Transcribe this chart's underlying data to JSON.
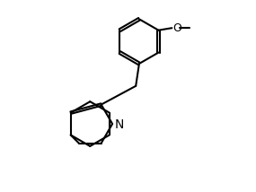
{
  "bg_color": "#ffffff",
  "line_color": "#000000",
  "line_width": 1.5,
  "font_size": 9,
  "label_N": "N",
  "label_O": "O",
  "figsize": [
    2.85,
    2.14
  ],
  "dpi": 100
}
